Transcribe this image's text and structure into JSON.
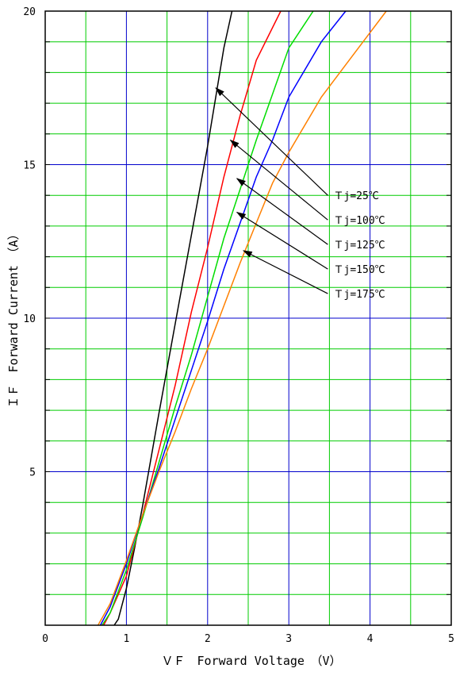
{
  "chart_data": {
    "type": "line",
    "title": "",
    "xlabel": "ＶＦ　Forward Voltage　（V）",
    "ylabel": "ＩＦ　Forward Current　（A）",
    "xlim": [
      0,
      5
    ],
    "ylim": [
      0,
      20
    ],
    "x_ticks": [
      0,
      1,
      2,
      3,
      4,
      5
    ],
    "y_ticks": [
      5,
      10,
      15,
      20
    ],
    "grid": true,
    "colors": {
      "major_grid": "#0000cc",
      "minor_grid": "#00cc00",
      "frame": "#000000"
    },
    "series": [
      {
        "name": "Tj=25℃",
        "color": "#000000",
        "points": [
          [
            0.85,
            0
          ],
          [
            0.9,
            0.2
          ],
          [
            1.0,
            1.2
          ],
          [
            1.1,
            2.5
          ],
          [
            1.2,
            3.9
          ],
          [
            1.4,
            6.9
          ],
          [
            1.6,
            9.8
          ],
          [
            1.8,
            12.7
          ],
          [
            2.0,
            15.6
          ],
          [
            2.2,
            18.8
          ],
          [
            2.3,
            20
          ]
        ]
      },
      {
        "name": "Tj=100℃",
        "color": "#ff0000",
        "points": [
          [
            0.72,
            0
          ],
          [
            0.8,
            0.4
          ],
          [
            1.0,
            1.6
          ],
          [
            1.2,
            3.6
          ],
          [
            1.4,
            5.7
          ],
          [
            1.6,
            7.8
          ],
          [
            1.8,
            10.2
          ],
          [
            2.0,
            12.3
          ],
          [
            2.2,
            14.6
          ],
          [
            2.4,
            16.6
          ],
          [
            2.6,
            18.4
          ],
          [
            2.9,
            20
          ]
        ]
      },
      {
        "name": "Tj=125℃",
        "color": "#00dd00",
        "points": [
          [
            0.7,
            0
          ],
          [
            0.8,
            0.4
          ],
          [
            1.0,
            1.8
          ],
          [
            1.2,
            3.5
          ],
          [
            1.4,
            5.3
          ],
          [
            1.6,
            7.1
          ],
          [
            1.8,
            8.8
          ],
          [
            2.0,
            10.7
          ],
          [
            2.2,
            12.6
          ],
          [
            2.4,
            14.2
          ],
          [
            2.6,
            15.8
          ],
          [
            2.8,
            17.3
          ],
          [
            3.0,
            18.8
          ],
          [
            3.3,
            20
          ]
        ]
      },
      {
        "name": "Tj=150℃",
        "color": "#0000ff",
        "points": [
          [
            0.68,
            0
          ],
          [
            0.8,
            0.6
          ],
          [
            1.0,
            2.0
          ],
          [
            1.2,
            3.6
          ],
          [
            1.4,
            5.1
          ],
          [
            1.6,
            6.7
          ],
          [
            1.8,
            8.3
          ],
          [
            2.0,
            9.9
          ],
          [
            2.2,
            11.6
          ],
          [
            2.4,
            13.1
          ],
          [
            2.6,
            14.6
          ],
          [
            2.8,
            15.8
          ],
          [
            3.0,
            17.2
          ],
          [
            3.4,
            19.0
          ],
          [
            3.7,
            20
          ]
        ]
      },
      {
        "name": "Tj=175℃",
        "color": "#ff8000",
        "points": [
          [
            0.65,
            0
          ],
          [
            0.8,
            0.7
          ],
          [
            1.0,
            2.1
          ],
          [
            1.2,
            3.6
          ],
          [
            1.4,
            5.0
          ],
          [
            1.6,
            6.3
          ],
          [
            1.8,
            7.7
          ],
          [
            2.0,
            9.0
          ],
          [
            2.2,
            10.4
          ],
          [
            2.4,
            11.8
          ],
          [
            2.6,
            13.1
          ],
          [
            2.8,
            14.4
          ],
          [
            3.0,
            15.4
          ],
          [
            3.4,
            17.2
          ],
          [
            3.8,
            18.6
          ],
          [
            4.2,
            20
          ]
        ]
      }
    ],
    "annotations": [
      {
        "text": "Ｔj=25℃",
        "label_at": [
          3.55,
          14.0
        ],
        "arrow_tail": [
          3.48,
          14.0
        ],
        "arrow_head": [
          2.1,
          17.5
        ]
      },
      {
        "text": "Ｔj=100℃",
        "label_at": [
          3.55,
          13.2
        ],
        "arrow_tail": [
          3.48,
          13.2
        ],
        "arrow_head": [
          2.28,
          15.8
        ]
      },
      {
        "text": "Ｔj=125℃",
        "label_at": [
          3.55,
          12.4
        ],
        "arrow_tail": [
          3.48,
          12.4
        ],
        "arrow_head": [
          2.36,
          14.55
        ]
      },
      {
        "text": "Ｔj=150℃",
        "label_at": [
          3.55,
          11.6
        ],
        "arrow_tail": [
          3.48,
          11.6
        ],
        "arrow_head": [
          2.36,
          13.45
        ]
      },
      {
        "text": "Ｔj=175℃",
        "label_at": [
          3.55,
          10.8
        ],
        "arrow_tail": [
          3.48,
          10.8
        ],
        "arrow_head": [
          2.44,
          12.2
        ]
      }
    ]
  }
}
